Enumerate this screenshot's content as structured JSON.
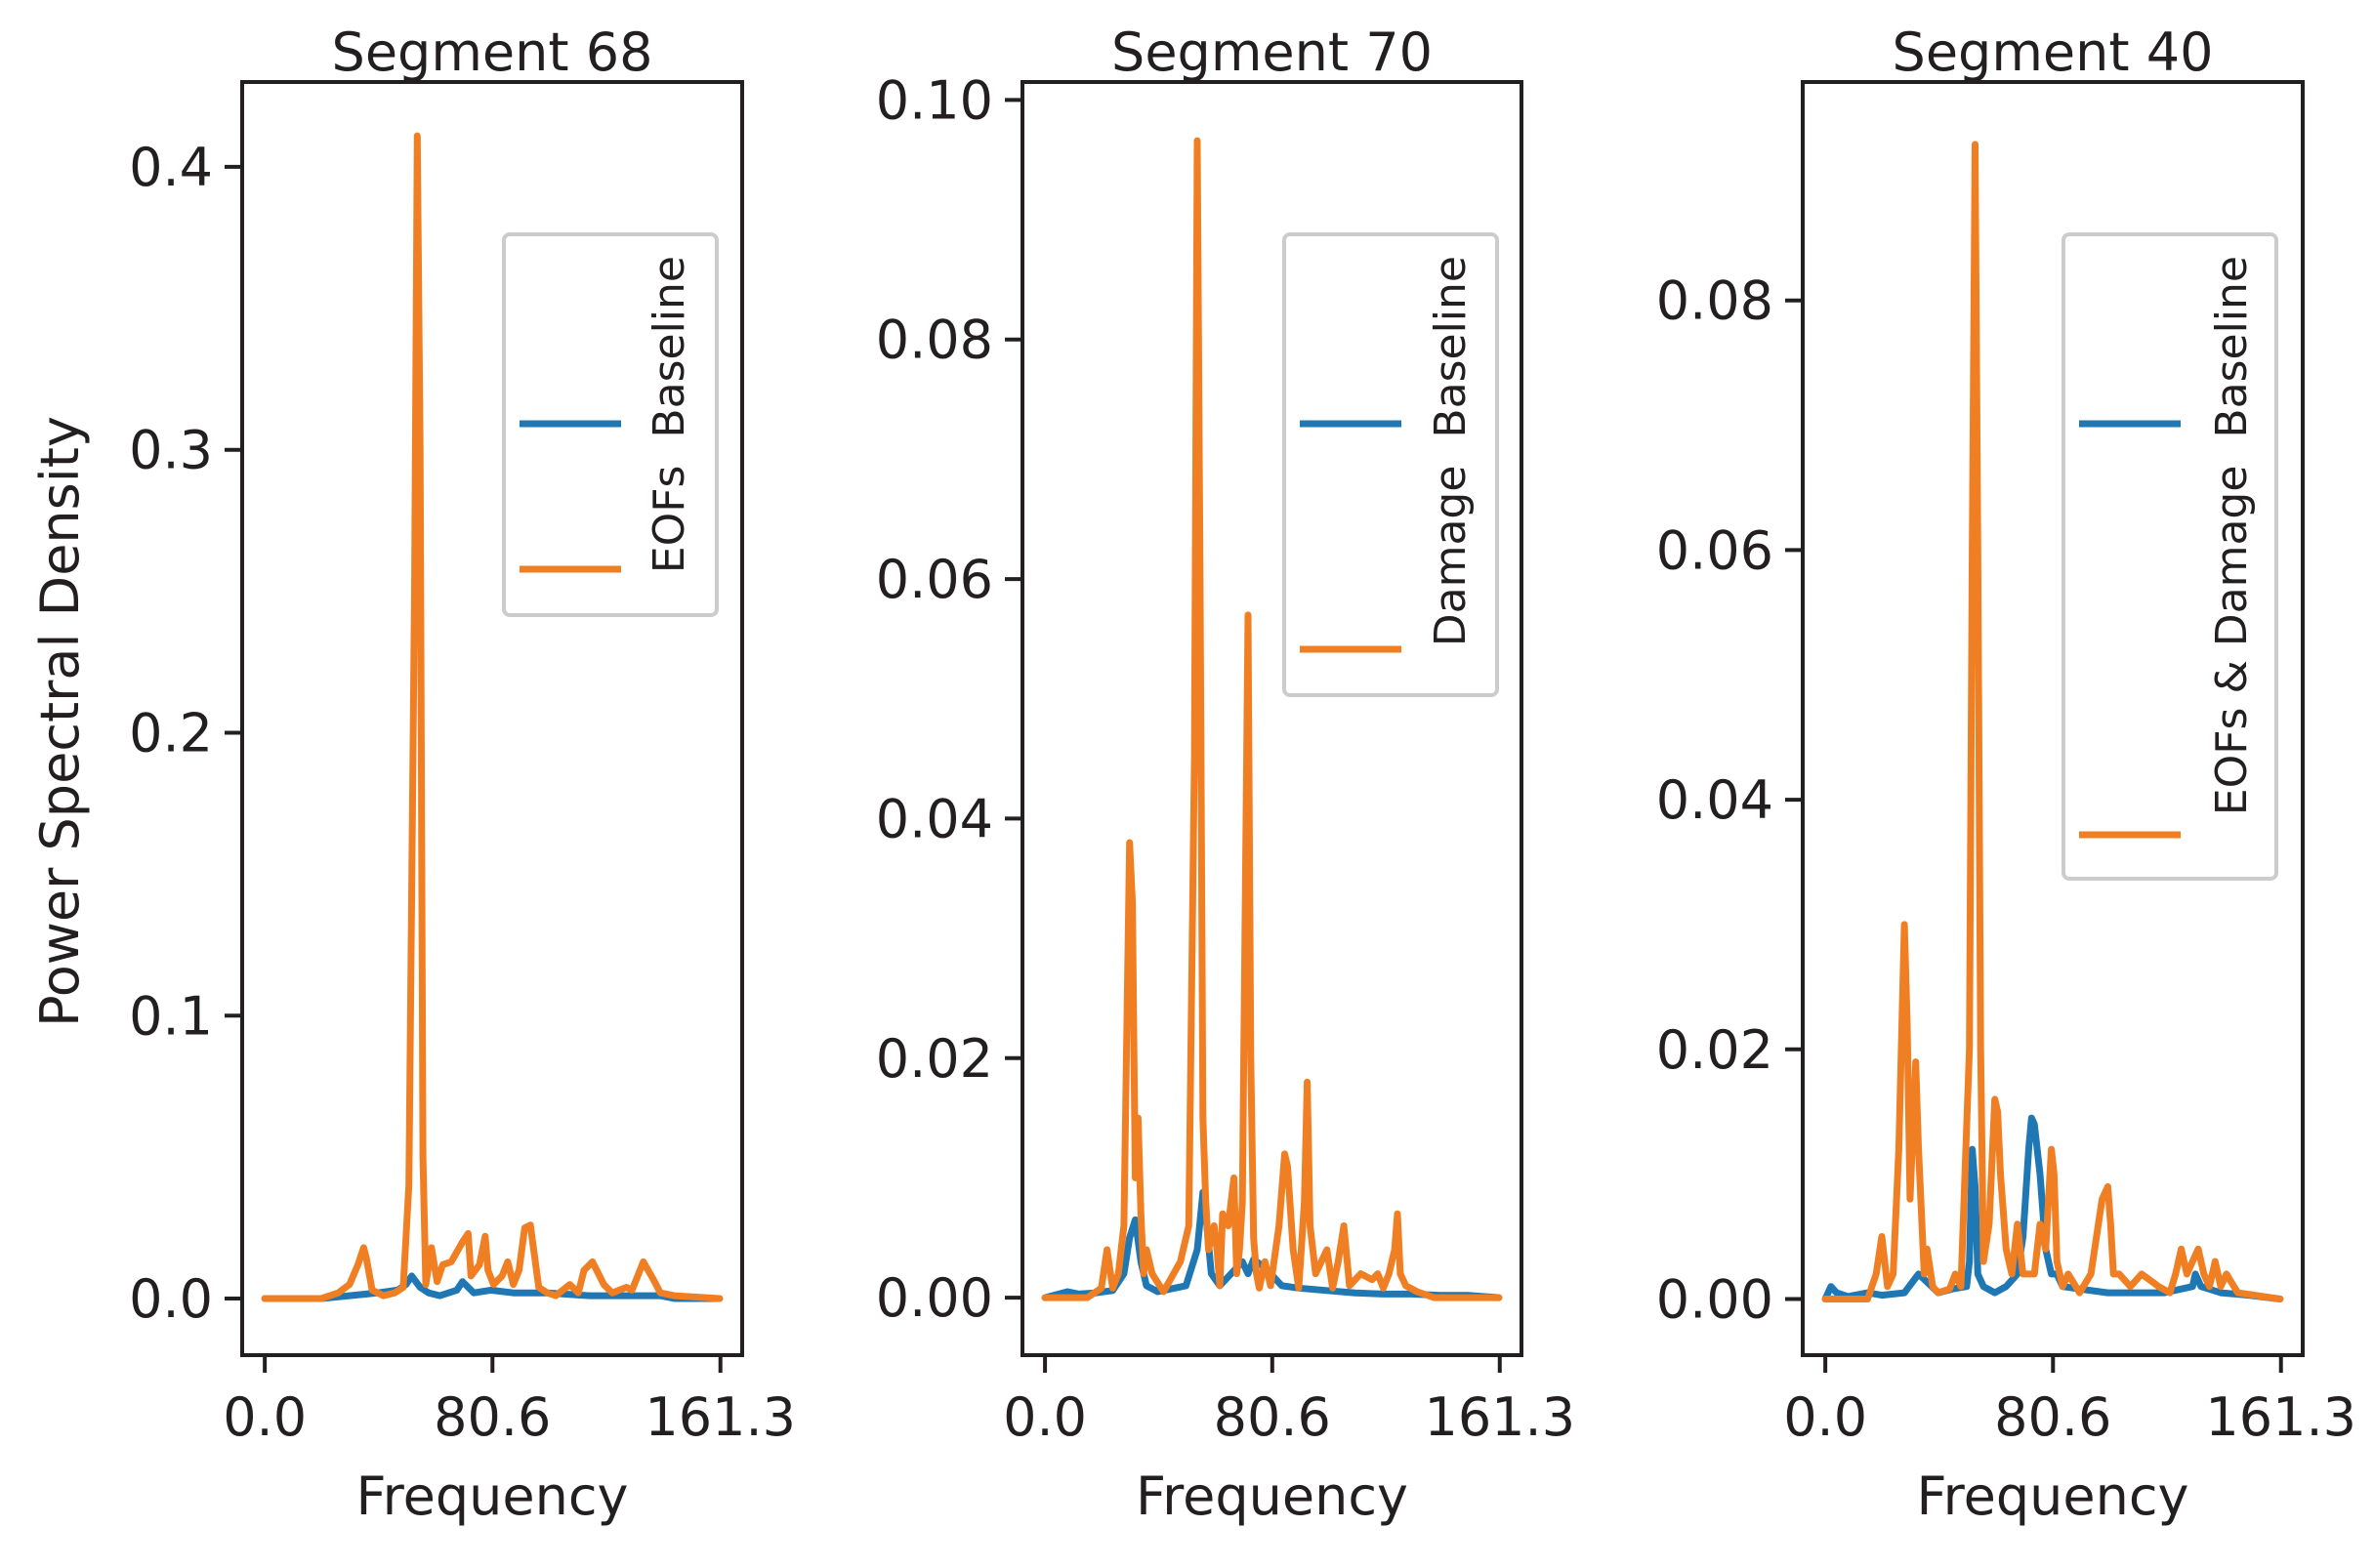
{
  "figure": {
    "ylabel": "Power Spectral Density"
  },
  "colors": {
    "baseline": "#1f77b4",
    "variant": "#f07f23",
    "axis": "#231f20"
  },
  "chart_data": [
    {
      "type": "line",
      "title": "Segment 68",
      "xlabel": "Frequency",
      "ylabel": "Power Spectral Density",
      "xlim": [
        -8,
        169
      ],
      "ylim": [
        -0.02,
        0.43
      ],
      "xticks": [
        0.0,
        80.6,
        161.3
      ],
      "xtick_labels": [
        "0.0",
        "80.6",
        "161.3"
      ],
      "yticks": [
        0.0,
        0.1,
        0.2,
        0.3,
        0.4
      ],
      "ytick_labels": [
        "0.0",
        "0.1",
        "0.2",
        "0.3",
        "0.4"
      ],
      "legend": [
        "Baseline",
        "EOFs"
      ],
      "legend_position": "upper-right",
      "series": [
        {
          "name": "Baseline",
          "x": [
            0,
            20,
            30,
            40,
            47,
            50,
            52,
            55,
            58,
            62,
            68,
            70,
            74,
            80,
            88,
            100,
            115,
            130,
            140,
            145,
            161
          ],
          "y": [
            0,
            0,
            0.001,
            0.002,
            0.003,
            0.005,
            0.008,
            0.004,
            0.002,
            0.001,
            0.003,
            0.006,
            0.002,
            0.003,
            0.002,
            0.002,
            0.001,
            0.001,
            0.001,
            0,
            0
          ]
        },
        {
          "name": "EOFs",
          "x": [
            0,
            20,
            26,
            30,
            33,
            35,
            36,
            38,
            42,
            46,
            49,
            51,
            53,
            54,
            55,
            56,
            57,
            59,
            61,
            63,
            66,
            70,
            72,
            73,
            76,
            78,
            79,
            81,
            84,
            86,
            88,
            90,
            92,
            94,
            97,
            100,
            103,
            108,
            111,
            113,
            116,
            120,
            123,
            128,
            130,
            132,
            134,
            138,
            140,
            145,
            161
          ],
          "y": [
            0,
            0,
            0.002,
            0.005,
            0.012,
            0.018,
            0.014,
            0.003,
            0.001,
            0.002,
            0.004,
            0.04,
            0.25,
            0.411,
            0.3,
            0.05,
            0.005,
            0.018,
            0.006,
            0.012,
            0.013,
            0.02,
            0.023,
            0.008,
            0.012,
            0.022,
            0.01,
            0.005,
            0.008,
            0.013,
            0.005,
            0.01,
            0.025,
            0.026,
            0.004,
            0.002,
            0.001,
            0.005,
            0.002,
            0.01,
            0.013,
            0.005,
            0.002,
            0.004,
            0.003,
            0.008,
            0.013,
            0.006,
            0.002,
            0.001,
            0
          ]
        }
      ]
    },
    {
      "type": "line",
      "title": "Segment 70",
      "xlabel": "Frequency",
      "ylabel": "",
      "xlim": [
        -8,
        169
      ],
      "ylim": [
        -0.0048,
        0.1015
      ],
      "xticks": [
        0.0,
        80.6,
        161.3
      ],
      "xtick_labels": [
        "0.0",
        "80.6",
        "161.3"
      ],
      "yticks": [
        0.0,
        0.02,
        0.04,
        0.06,
        0.08,
        0.1
      ],
      "ytick_labels": [
        "0.00",
        "0.02",
        "0.04",
        "0.06",
        "0.08",
        "0.10"
      ],
      "legend": [
        "Baseline",
        "Damage"
      ],
      "legend_position": "upper-right",
      "series": [
        {
          "name": "Baseline",
          "x": [
            0,
            8,
            12,
            18,
            24,
            28,
            30,
            32,
            34,
            36,
            40,
            46,
            50,
            54,
            56,
            57,
            59,
            62,
            66,
            70,
            72,
            74,
            78,
            80,
            84,
            90,
            100,
            110,
            120,
            130,
            140,
            150,
            161
          ],
          "y": [
            0,
            0.0005,
            0.0003,
            0.0004,
            0.0006,
            0.002,
            0.005,
            0.0065,
            0.003,
            0.001,
            0.0005,
            0.0008,
            0.001,
            0.004,
            0.0088,
            0.007,
            0.002,
            0.001,
            0.002,
            0.003,
            0.002,
            0.0032,
            0.0025,
            0.002,
            0.001,
            0.0008,
            0.0006,
            0.0004,
            0.0003,
            0.0003,
            0.0002,
            0.0002,
            0
          ]
        },
        {
          "name": "Damage",
          "x": [
            0,
            15,
            20,
            22,
            24,
            26,
            28,
            30,
            31,
            32,
            33,
            34,
            35,
            36,
            38,
            42,
            48,
            51,
            53,
            54,
            55,
            56,
            57,
            58,
            60,
            61,
            62,
            63,
            65,
            67,
            68,
            69,
            70,
            72,
            73,
            74,
            75,
            76,
            78,
            80,
            83,
            85,
            86,
            88,
            90,
            92,
            93,
            94,
            96,
            100,
            102,
            104,
            106,
            108,
            112,
            116,
            118,
            120,
            122,
            124,
            125,
            126,
            128,
            132,
            138,
            161
          ],
          "y": [
            0,
            0,
            0.0008,
            0.004,
            0.0008,
            0.002,
            0.006,
            0.038,
            0.033,
            0.01,
            0.015,
            0.007,
            0.002,
            0.004,
            0.002,
            0.0005,
            0.003,
            0.006,
            0.045,
            0.0966,
            0.06,
            0.015,
            0.008,
            0.004,
            0.006,
            0.004,
            0.001,
            0.007,
            0.006,
            0.01,
            0.002,
            0.004,
            0.008,
            0.057,
            0.02,
            0.005,
            0.002,
            0.0008,
            0.003,
            0.001,
            0.006,
            0.012,
            0.011,
            0.004,
            0.0008,
            0.008,
            0.018,
            0.006,
            0.002,
            0.004,
            0.0008,
            0.003,
            0.006,
            0.001,
            0.002,
            0.0015,
            0.002,
            0.0008,
            0.002,
            0.004,
            0.007,
            0.002,
            0.001,
            0.0005,
            0,
            0
          ]
        }
      ]
    },
    {
      "type": "line",
      "title": "Segment 40",
      "xlabel": "Frequency",
      "ylabel": "",
      "xlim": [
        -8,
        169
      ],
      "ylim": [
        -0.0045,
        0.0975
      ],
      "xticks": [
        0.0,
        80.6,
        161.3
      ],
      "xtick_labels": [
        "0.0",
        "80.6",
        "161.3"
      ],
      "yticks": [
        0.0,
        0.02,
        0.04,
        0.06,
        0.08
      ],
      "ytick_labels": [
        "0.00",
        "0.02",
        "0.04",
        "0.06",
        "0.08"
      ],
      "legend": [
        "Baseline",
        "EOFs & Damage"
      ],
      "legend_position": "upper-right",
      "series": [
        {
          "name": "Baseline",
          "x": [
            0,
            2,
            4,
            8,
            15,
            20,
            28,
            33,
            40,
            45,
            50,
            51,
            52,
            53,
            54,
            56,
            60,
            64,
            68,
            70,
            72,
            73,
            74,
            76,
            78,
            80,
            82,
            84,
            90,
            100,
            120,
            130,
            131,
            133,
            140,
            150,
            161
          ],
          "y": [
            0,
            0.001,
            0.0005,
            0.0002,
            0.0005,
            0.0003,
            0.0005,
            0.002,
            0.0005,
            0.0008,
            0.001,
            0.003,
            0.012,
            0.009,
            0.002,
            0.001,
            0.0005,
            0.001,
            0.002,
            0.005,
            0.012,
            0.0145,
            0.014,
            0.01,
            0.004,
            0.002,
            0.002,
            0.001,
            0.0008,
            0.0005,
            0.0005,
            0.001,
            0.002,
            0.001,
            0.0005,
            0.0003,
            0
          ]
        },
        {
          "name": "EOFs & Damage",
          "x": [
            0,
            15,
            18,
            20,
            22,
            24,
            26,
            28,
            29,
            30,
            32,
            33,
            35,
            36,
            38,
            40,
            44,
            46,
            48,
            51,
            52,
            53,
            54,
            55,
            56,
            58,
            60,
            61,
            62,
            64,
            66,
            68,
            70,
            74,
            76,
            78,
            80,
            81,
            82,
            84,
            86,
            90,
            94,
            98,
            100,
            101,
            102,
            104,
            108,
            112,
            118,
            122,
            124,
            126,
            128,
            130,
            132,
            134,
            136,
            138,
            140,
            142,
            146,
            161
          ],
          "y": [
            0,
            0,
            0.002,
            0.005,
            0.001,
            0.002,
            0.012,
            0.03,
            0.022,
            0.008,
            0.019,
            0.012,
            0.002,
            0.004,
            0.001,
            0.0005,
            0.0008,
            0.002,
            0.001,
            0.02,
            0.06,
            0.0925,
            0.06,
            0.02,
            0.003,
            0.006,
            0.016,
            0.015,
            0.01,
            0.004,
            0.002,
            0.006,
            0.002,
            0.002,
            0.006,
            0.004,
            0.012,
            0.01,
            0.003,
            0.001,
            0.002,
            0.0005,
            0.002,
            0.008,
            0.009,
            0.006,
            0.002,
            0.002,
            0.001,
            0.002,
            0.001,
            0.0005,
            0.002,
            0.004,
            0.002,
            0.003,
            0.004,
            0.002,
            0.001,
            0.003,
            0.001,
            0.002,
            0.0005,
            0
          ]
        }
      ]
    }
  ]
}
